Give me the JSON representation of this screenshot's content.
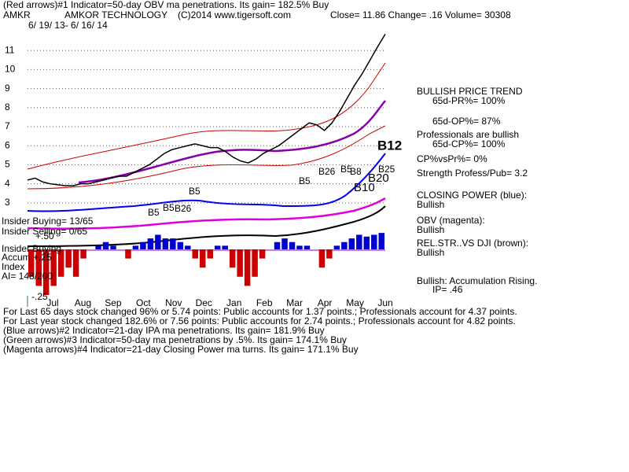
{
  "chart_data": {
    "type": "line",
    "header": [
      "(Red arrows)#1 Indicator=50-day OBV ma penetrations.  Its gain= 182.5% Buy",
      "AMKR",
      "AMKOR TECHNOLOGY",
      "(C)2014 www.tigersoft.com",
      "Close=  11.86  Change= .16 Volume= 30308"
    ],
    "date_range": "6/ 19/ 13- 6/ 16/ 14",
    "x_labels": [
      "Jul",
      "Aug",
      "Sep",
      "Oct",
      "Nov",
      "Dec",
      "Jan",
      "Feb",
      "Mar",
      "Apr",
      "May",
      "Jun"
    ],
    "ylim": [
      2.5,
      12
    ],
    "yticks": [
      3,
      4,
      5,
      6,
      7,
      8,
      9,
      10,
      11
    ],
    "grid": true,
    "series": [
      {
        "color": "#000000",
        "values": [
          4.2,
          4.3,
          4.1,
          4.0,
          3.95,
          3.9,
          3.9,
          4.0,
          4.0,
          4.1,
          4.2,
          4.3,
          4.4,
          4.4,
          4.6,
          4.8,
          5.0,
          5.3,
          5.6,
          5.8,
          5.9,
          6.0,
          6.1,
          6.0,
          5.9,
          5.9,
          5.7,
          5.4,
          5.2,
          5.1,
          5.3,
          5.6,
          5.8,
          6.0,
          6.3,
          6.6,
          6.9,
          7.2,
          7.1,
          6.8,
          7.2,
          7.8,
          8.5,
          9.2,
          9.8,
          10.5,
          11.2,
          11.86
        ]
      }
    ],
    "signals": [
      "B12",
      "B25",
      "B20",
      "B10",
      "B26",
      "B5",
      "B8",
      "B5",
      "B5",
      "B5",
      "B26",
      "B5"
    ],
    "accumulation": {
      "ylim": [
        -0.25,
        0.25
      ],
      "up_color": "#0000cc",
      "down_color": "#cc0000",
      "values": [
        -0.15,
        -0.2,
        -0.25,
        -0.2,
        -0.15,
        -0.1,
        -0.15,
        -0.05,
        0.0,
        0.02,
        0.04,
        0.02,
        0.0,
        -0.05,
        0.02,
        0.04,
        0.06,
        0.08,
        0.06,
        0.06,
        0.04,
        0.02,
        -0.05,
        -0.1,
        -0.05,
        0.02,
        0.02,
        -0.1,
        -0.15,
        -0.2,
        -0.15,
        -0.05,
        0.0,
        0.04,
        0.06,
        0.04,
        0.02,
        0.02,
        0.0,
        -0.1,
        -0.05,
        0.02,
        0.04,
        0.06,
        0.08,
        0.07,
        0.08,
        0.09
      ]
    },
    "left_labels": [
      "Insider Buying= 13/65",
      "Insider Selling= 0/65",
      "Insider Buying",
      "Accum  +.25",
      "Index",
      "AI= 148/200",
      "+.50",
      "-.25"
    ],
    "side_panel": [
      "BULLISH PRICE TREND",
      "65d-PR%= 100%",
      "65d-OP%= 87%",
      "Professionals are bullish",
      "65d-CP%= 100%",
      "CP%vsPr%=  0%",
      "Strength Profess/Pub= 3.2",
      "CLOSING POWER (blue):",
      "Bullish",
      "OBV (magenta):",
      "Bullish",
      "REL.STR..VS DJI (brown):",
      "Bullish",
      "Bullish: Accumulation Rising.",
      "IP=  .46"
    ],
    "footer": [
      "For Last 65 days stock changed  96% or  5.74 points:  Public accounts for  1.37 points.;  Professionals account for  4.37 points.",
      "For Last year stock changed  182.6% or  7.56 points:  Public accounts for  2.74 points.;  Professionals account for  4.82 points.",
      "(Blue arrows)#2 Indicator=21-day IPA ma penetrations.  Its gain= 181.9% Buy",
      "(Green arrows)#3 Indicator=50-day ma penetrations by .5%.  Its gain= 174.1% Buy",
      "(Magenta arrows)#4 Indicator=21-day Closing Power ma turns.  Its gain= 171.1% Buy"
    ]
  }
}
